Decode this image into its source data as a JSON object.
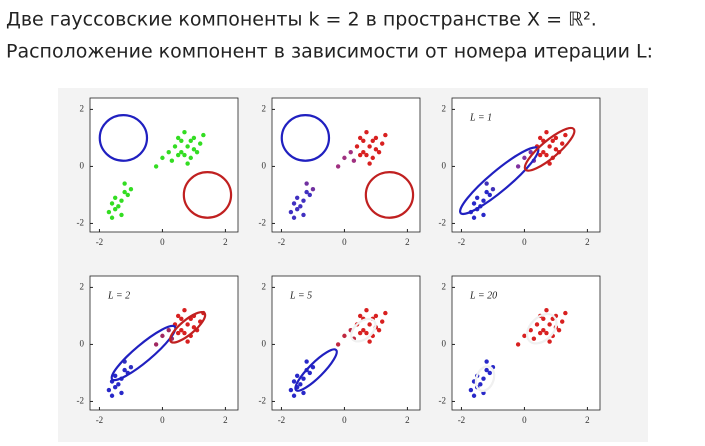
{
  "heading": {
    "line1": "Две гауссовские компоненты k = 2 в пространстве X = ℝ².",
    "line2": "Расположение компонент в зависимости от номера итерации L:"
  },
  "chart_data": [
    {
      "type": "scatter",
      "xlim": [
        -2.3,
        2.4
      ],
      "ylim": [
        -2.3,
        2.4
      ],
      "xticks": [
        -2,
        0,
        2
      ],
      "yticks": [
        -2,
        0,
        2
      ],
      "series": [
        {
          "color": "#33dd22",
          "x": [
            -1.5,
            -1.3,
            -1.6,
            -1.2,
            -1.4,
            -1.7,
            -1.1,
            -1.5,
            -1.3,
            -1.6
          ],
          "values": [
            -1.5,
            -1.2,
            -1.8,
            -0.9,
            -1.4,
            -1.6,
            -1.0,
            -1.1,
            -1.7,
            -1.3
          ]
        },
        {
          "color": "#33dd22",
          "x": [
            -1.2,
            -1.0
          ],
          "values": [
            -0.6,
            -0.8
          ]
        },
        {
          "color": "#33dd22",
          "x": [
            0.3,
            0.2,
            0.0,
            -0.2
          ],
          "values": [
            0.2,
            0.5,
            0.3,
            0.0
          ]
        },
        {
          "color": "#33dd22",
          "x": [
            0.5,
            0.8,
            1.0,
            0.6,
            1.2,
            0.9,
            0.4,
            0.7,
            1.1,
            0.8,
            1.3,
            0.6,
            0.9,
            0.5,
            1.0,
            0.7
          ],
          "values": [
            0.4,
            0.7,
            1.0,
            0.9,
            0.8,
            0.3,
            0.7,
            1.2,
            0.5,
            0.1,
            1.1,
            0.5,
            0.9,
            1.0,
            0.6,
            0.4
          ]
        }
      ],
      "ellipses": [
        {
          "cx": -1.24,
          "cy": 1.0,
          "rx": 0.75,
          "ry": 0.8,
          "angle": 0,
          "color": "#2020c0"
        },
        {
          "cx": 1.43,
          "cy": -1.0,
          "rx": 0.75,
          "ry": 0.8,
          "angle": 0,
          "color": "#c02020"
        }
      ]
    },
    {
      "type": "scatter",
      "xlim": [
        -2.3,
        2.4
      ],
      "ylim": [
        -2.3,
        2.4
      ],
      "xticks": [
        -2,
        0,
        2
      ],
      "yticks": [
        -2,
        0,
        2
      ],
      "series": [
        {
          "color": "#4030c0",
          "x": [
            -1.5,
            -1.3,
            -1.6,
            -1.2,
            -1.4,
            -1.7,
            -1.1,
            -1.5,
            -1.3,
            -1.6
          ],
          "values": [
            -1.5,
            -1.2,
            -1.8,
            -0.9,
            -1.4,
            -1.6,
            -1.0,
            -1.1,
            -1.7,
            -1.3
          ]
        },
        {
          "color": "#7030a0",
          "x": [
            -1.2,
            -1.0
          ],
          "values": [
            -0.6,
            -0.8
          ]
        },
        {
          "color": "#a03080",
          "x": [
            0.3,
            0.2,
            0.0,
            -0.2
          ],
          "values": [
            0.2,
            0.5,
            0.3,
            0.0
          ]
        },
        {
          "color": "#d82020",
          "x": [
            0.5,
            0.8,
            1.0,
            0.6,
            1.2,
            0.9,
            0.4,
            0.7,
            1.1,
            0.8,
            1.3,
            0.6,
            0.9,
            0.5,
            1.0,
            0.7
          ],
          "values": [
            0.4,
            0.7,
            1.0,
            0.9,
            0.8,
            0.3,
            0.7,
            1.2,
            0.5,
            0.1,
            1.1,
            0.5,
            0.9,
            1.0,
            0.6,
            0.4
          ]
        }
      ],
      "ellipses": [
        {
          "cx": -1.24,
          "cy": 1.0,
          "rx": 0.75,
          "ry": 0.8,
          "angle": 0,
          "color": "#2020c0"
        },
        {
          "cx": 1.43,
          "cy": -1.0,
          "rx": 0.75,
          "ry": 0.8,
          "angle": 0,
          "color": "#c02020"
        }
      ]
    },
    {
      "type": "scatter",
      "label": "L = 1",
      "xlim": [
        -2.3,
        2.4
      ],
      "ylim": [
        -2.3,
        2.4
      ],
      "xticks": [
        -2,
        0,
        2
      ],
      "yticks": [
        -2,
        0,
        2
      ],
      "series": [
        {
          "color": "#2828c8",
          "x": [
            -1.5,
            -1.3,
            -1.6,
            -1.2,
            -1.4,
            -1.7,
            -1.1,
            -1.5,
            -1.3,
            -1.6
          ],
          "values": [
            -1.5,
            -1.2,
            -1.8,
            -0.9,
            -1.4,
            -1.6,
            -1.0,
            -1.1,
            -1.7,
            -1.3
          ]
        },
        {
          "color": "#4030b8",
          "x": [
            -1.2,
            -1.0
          ],
          "values": [
            -0.6,
            -0.8
          ]
        },
        {
          "color": "#8030a0",
          "x": [
            0.3,
            0.2,
            0.0,
            -0.2
          ],
          "values": [
            0.2,
            0.5,
            0.3,
            0.0
          ]
        },
        {
          "color": "#d82020",
          "x": [
            0.5,
            0.8,
            1.0,
            0.6,
            1.2,
            0.9,
            0.4,
            0.7,
            1.1,
            0.8,
            1.3,
            0.6,
            0.9,
            0.5,
            1.0,
            0.7
          ],
          "values": [
            0.4,
            0.7,
            1.0,
            0.9,
            0.8,
            0.3,
            0.7,
            1.2,
            0.5,
            0.1,
            1.1,
            0.5,
            0.9,
            1.0,
            0.6,
            0.4
          ]
        }
      ],
      "ellipses": [
        {
          "cx": -0.8,
          "cy": -0.5,
          "rx": 1.6,
          "ry": 0.35,
          "angle": 40,
          "color": "#2020c0"
        },
        {
          "cx": 0.8,
          "cy": 0.6,
          "rx": 1.0,
          "ry": 0.3,
          "angle": 40,
          "color": "#c02020"
        }
      ]
    },
    {
      "type": "scatter",
      "label": "L = 2",
      "xlim": [
        -2.3,
        2.4
      ],
      "ylim": [
        -2.3,
        2.4
      ],
      "xticks": [
        -2,
        0,
        2
      ],
      "yticks": [
        -2,
        0,
        2
      ],
      "series": [
        {
          "color": "#2828c8",
          "x": [
            -1.5,
            -1.3,
            -1.6,
            -1.2,
            -1.4,
            -1.7,
            -1.1,
            -1.5,
            -1.3,
            -1.6
          ],
          "values": [
            -1.5,
            -1.2,
            -1.8,
            -0.9,
            -1.4,
            -1.6,
            -1.0,
            -1.1,
            -1.7,
            -1.3
          ]
        },
        {
          "color": "#3030c0",
          "x": [
            -1.2,
            -1.0
          ],
          "values": [
            -0.6,
            -0.8
          ]
        },
        {
          "color": "#a02860",
          "x": [
            0.3,
            0.2,
            0.0,
            -0.2
          ],
          "values": [
            0.2,
            0.5,
            0.3,
            0.0
          ]
        },
        {
          "color": "#d82020",
          "x": [
            0.5,
            0.8,
            1.0,
            0.6,
            1.2,
            0.9,
            0.4,
            0.7,
            1.1,
            0.8,
            1.3,
            0.6,
            0.9,
            0.5,
            1.0,
            0.7
          ],
          "values": [
            0.4,
            0.7,
            1.0,
            0.9,
            0.8,
            0.3,
            0.7,
            1.2,
            0.5,
            0.1,
            1.1,
            0.5,
            0.9,
            1.0,
            0.6,
            0.4
          ]
        }
      ],
      "ellipses": [
        {
          "cx": -0.6,
          "cy": -0.3,
          "rx": 1.3,
          "ry": 0.3,
          "angle": 40,
          "color": "#2020c0"
        },
        {
          "cx": 0.8,
          "cy": 0.6,
          "rx": 0.7,
          "ry": 0.25,
          "angle": 40,
          "color": "#c02020"
        }
      ]
    },
    {
      "type": "scatter",
      "label": "L = 5",
      "xlim": [
        -2.3,
        2.4
      ],
      "ylim": [
        -2.3,
        2.4
      ],
      "xticks": [
        -2,
        0,
        2
      ],
      "yticks": [
        -2,
        0,
        2
      ],
      "series": [
        {
          "color": "#2828c8",
          "x": [
            -1.5,
            -1.3,
            -1.6,
            -1.2,
            -1.4,
            -1.7,
            -1.1,
            -1.5,
            -1.3,
            -1.6
          ],
          "values": [
            -1.5,
            -1.2,
            -1.8,
            -0.9,
            -1.4,
            -1.6,
            -1.0,
            -1.1,
            -1.7,
            -1.3
          ]
        },
        {
          "color": "#2828c8",
          "x": [
            -1.2,
            -1.0
          ],
          "values": [
            -0.6,
            -0.8
          ]
        },
        {
          "color": "#c02840",
          "x": [
            0.3,
            0.2,
            0.0,
            -0.2
          ],
          "values": [
            0.2,
            0.5,
            0.3,
            0.0
          ]
        },
        {
          "color": "#d82020",
          "x": [
            0.5,
            0.8,
            1.0,
            0.6,
            1.2,
            0.9,
            0.4,
            0.7,
            1.1,
            0.8,
            1.3,
            0.6,
            0.9,
            0.5,
            1.0,
            0.7
          ],
          "values": [
            0.4,
            0.7,
            1.0,
            0.9,
            0.8,
            0.3,
            0.7,
            1.2,
            0.5,
            0.1,
            1.1,
            0.5,
            0.9,
            1.0,
            0.6,
            0.4
          ]
        }
      ],
      "ellipses": [
        {
          "cx": -0.9,
          "cy": -0.9,
          "rx": 0.9,
          "ry": 0.25,
          "angle": 45,
          "color": "#2020c0"
        },
        {
          "cx": 0.6,
          "cy": 0.5,
          "rx": 0.45,
          "ry": 0.3,
          "angle": 40,
          "color": "#f0f0f0"
        }
      ]
    },
    {
      "type": "scatter",
      "label": "L = 20",
      "xlim": [
        -2.3,
        2.4
      ],
      "ylim": [
        -2.3,
        2.4
      ],
      "xticks": [
        -2,
        0,
        2
      ],
      "yticks": [
        -2,
        0,
        2
      ],
      "series": [
        {
          "color": "#2828c8",
          "x": [
            -1.5,
            -1.3,
            -1.6,
            -1.2,
            -1.4,
            -1.7,
            -1.1,
            -1.5,
            -1.3,
            -1.6
          ],
          "values": [
            -1.5,
            -1.2,
            -1.8,
            -0.9,
            -1.4,
            -1.6,
            -1.0,
            -1.1,
            -1.7,
            -1.3
          ]
        },
        {
          "color": "#2828c8",
          "x": [
            -1.2,
            -1.0
          ],
          "values": [
            -0.6,
            -0.8
          ]
        },
        {
          "color": "#d82020",
          "x": [
            0.3,
            0.2,
            0.0,
            -0.2
          ],
          "values": [
            0.2,
            0.5,
            0.3,
            0.0
          ]
        },
        {
          "color": "#d82020",
          "x": [
            0.5,
            0.8,
            1.0,
            0.6,
            1.2,
            0.9,
            0.4,
            0.7,
            1.1,
            0.8,
            1.3,
            0.6,
            0.9,
            0.5,
            1.0,
            0.7
          ],
          "values": [
            0.4,
            0.7,
            1.0,
            0.9,
            0.8,
            0.3,
            0.7,
            1.2,
            0.5,
            0.1,
            1.1,
            0.5,
            0.9,
            1.0,
            0.6,
            0.4
          ]
        }
      ],
      "ellipses": [
        {
          "cx": -1.25,
          "cy": -1.2,
          "rx": 0.4,
          "ry": 0.3,
          "angle": 70,
          "color": "#f0f0f0"
        },
        {
          "cx": 0.55,
          "cy": 0.55,
          "rx": 0.55,
          "ry": 0.4,
          "angle": 45,
          "color": "#f0f0f0"
        }
      ]
    }
  ]
}
